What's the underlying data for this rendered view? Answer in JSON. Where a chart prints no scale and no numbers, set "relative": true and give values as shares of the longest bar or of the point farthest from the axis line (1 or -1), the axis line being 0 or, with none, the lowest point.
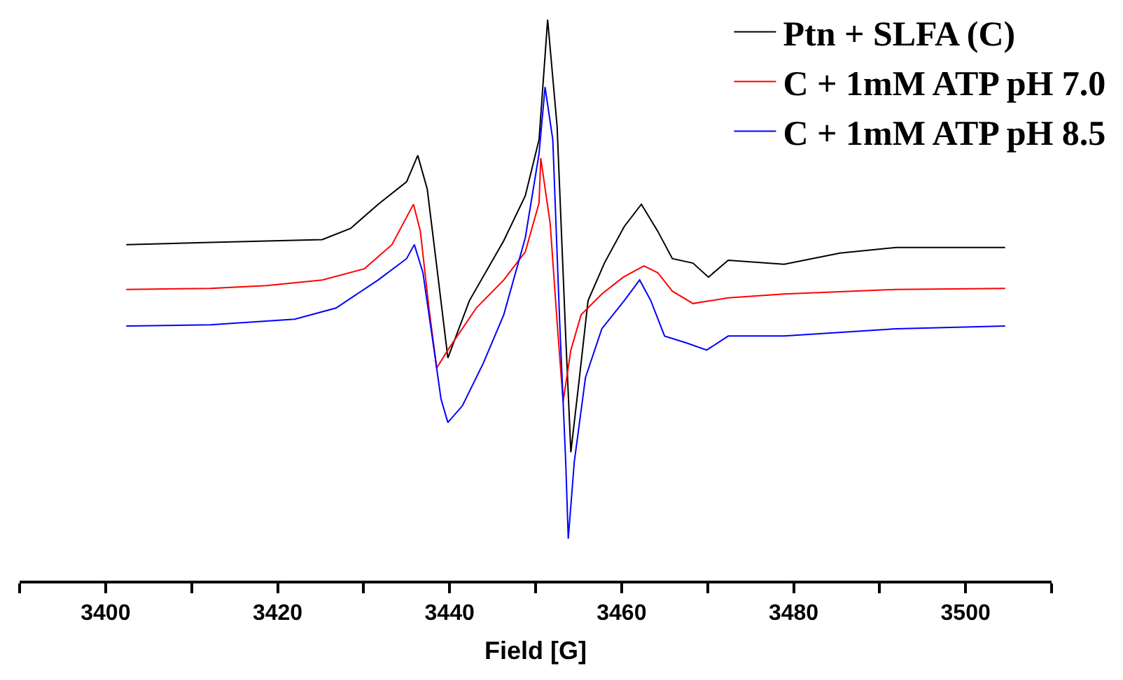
{
  "chart_data": {
    "type": "line",
    "relative": true,
    "xlabel": "Field [G]",
    "xlim": [
      3390,
      3510
    ],
    "xticks": [
      {
        "value": 3390,
        "label": null
      },
      3400,
      {
        "value": 3410,
        "label": null
      },
      3420,
      {
        "value": 3430,
        "label": null
      },
      3440,
      {
        "value": 3450,
        "label": null
      },
      3460,
      {
        "value": 3470,
        "label": null
      },
      3480,
      {
        "value": 3490,
        "label": null
      },
      3500,
      {
        "value": 3510,
        "label": null
      }
    ],
    "legend": "top right",
    "marker": "none",
    "line_style": "solid",
    "series": [
      {
        "name": "Ptn + SLFA (C)",
        "color": "#000000",
        "x": [
          3402.4,
          3412.2,
          3425.2,
          3428.5,
          3431.7,
          3435.0,
          3436.3,
          3437.4,
          3438.5,
          3439.8,
          3442.3,
          3446.3,
          3448.8,
          3450.4,
          3451.4,
          3452.5,
          3453.5,
          3454.1,
          3455.1,
          3456.1,
          3458.0,
          3460.3,
          3462.3,
          3464.2,
          3465.9,
          3468.3,
          3470.1,
          3472.4,
          3478.9,
          3485.4,
          3491.9,
          3504.6
        ],
        "values": [
          0.599,
          0.603,
          0.608,
          0.628,
          0.671,
          0.711,
          0.758,
          0.698,
          0.561,
          0.397,
          0.499,
          0.606,
          0.686,
          0.786,
          1.0,
          0.81,
          0.436,
          0.229,
          0.362,
          0.499,
          0.566,
          0.631,
          0.671,
          0.623,
          0.574,
          0.566,
          0.541,
          0.571,
          0.564,
          0.584,
          0.594,
          0.594
        ]
      },
      {
        "name": "C + 1mM ATP pH 7.0",
        "color": "#ff0000",
        "x": [
          3402.4,
          3412.2,
          3418.7,
          3425.2,
          3430.1,
          3433.3,
          3435.8,
          3436.6,
          3437.6,
          3438.5,
          3439.8,
          3443.1,
          3446.3,
          3448.8,
          3450.4,
          3450.6,
          3451.7,
          3452.5,
          3453.2,
          3454.1,
          3455.3,
          3457.7,
          3460.2,
          3462.6,
          3464.2,
          3465.9,
          3468.3,
          3472.4,
          3478.9,
          3491.9,
          3504.6
        ],
        "values": [
          0.519,
          0.521,
          0.526,
          0.536,
          0.556,
          0.599,
          0.671,
          0.623,
          0.486,
          0.379,
          0.411,
          0.486,
          0.536,
          0.586,
          0.673,
          0.753,
          0.636,
          0.461,
          0.319,
          0.411,
          0.474,
          0.511,
          0.541,
          0.561,
          0.549,
          0.516,
          0.494,
          0.504,
          0.511,
          0.519,
          0.521
        ]
      },
      {
        "name": "C + 1mM ATP pH 8.5",
        "color": "#0000ff",
        "x": [
          3402.4,
          3412.2,
          3422.0,
          3426.8,
          3431.7,
          3435.0,
          3435.9,
          3436.9,
          3438.2,
          3439.0,
          3439.8,
          3441.5,
          3443.9,
          3446.3,
          3448.8,
          3450.4,
          3451.1,
          3452.0,
          3452.8,
          3453.5,
          3453.8,
          3454.5,
          3455.8,
          3457.7,
          3460.3,
          3462.1,
          3463.4,
          3465.0,
          3467.5,
          3469.9,
          3472.4,
          3478.9,
          3491.9,
          3504.6
        ],
        "values": [
          0.454,
          0.456,
          0.466,
          0.486,
          0.536,
          0.574,
          0.599,
          0.549,
          0.411,
          0.324,
          0.282,
          0.312,
          0.387,
          0.474,
          0.611,
          0.761,
          0.88,
          0.786,
          0.461,
          0.212,
          0.075,
          0.212,
          0.362,
          0.449,
          0.499,
          0.536,
          0.499,
          0.436,
          0.424,
          0.411,
          0.436,
          0.436,
          0.449,
          0.454
        ]
      }
    ]
  }
}
